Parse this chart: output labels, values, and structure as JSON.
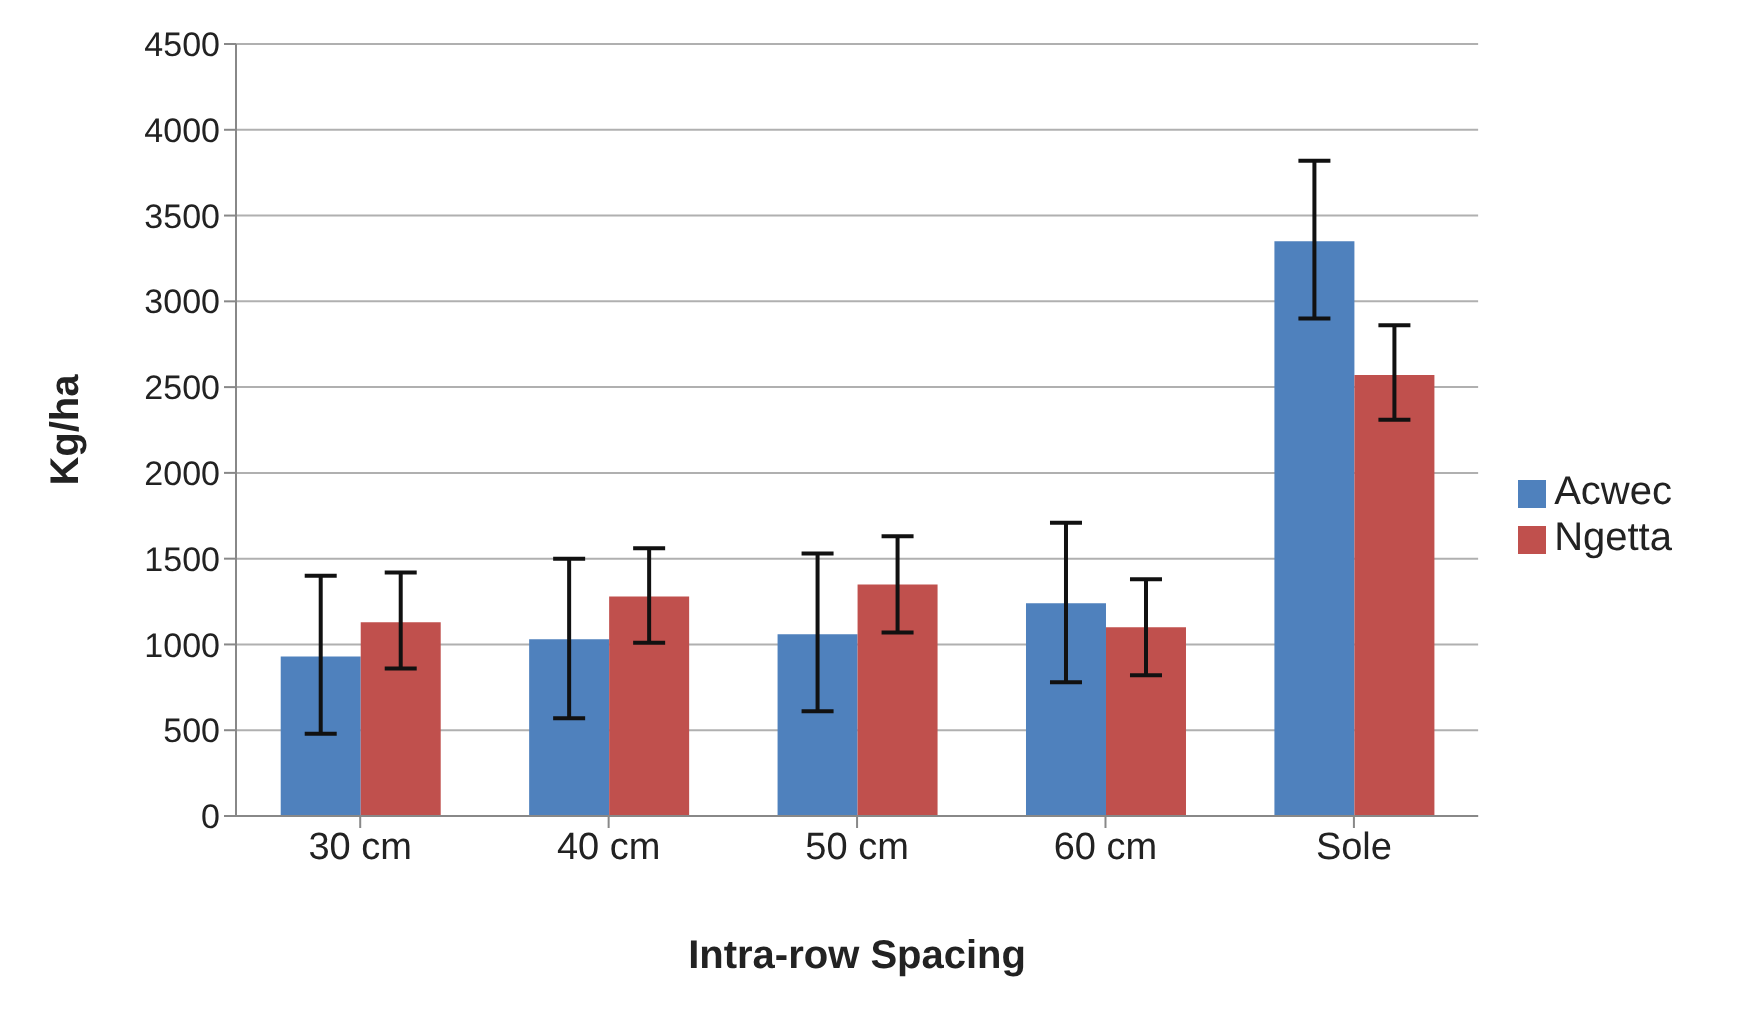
{
  "chart_data": {
    "type": "bar",
    "xlabel": "Intra-row Spacing",
    "ylabel": "Kg/ha",
    "categories": [
      "30 cm",
      "40 cm",
      "50 cm",
      "60 cm",
      "Sole"
    ],
    "series": [
      {
        "name": "Acwec",
        "color": "#4f81bd",
        "values": [
          930,
          1030,
          1060,
          1240,
          3350
        ],
        "errors": [
          [
            480,
            1400
          ],
          [
            570,
            1500
          ],
          [
            610,
            1530
          ],
          [
            780,
            1710
          ],
          [
            2900,
            3820
          ]
        ]
      },
      {
        "name": "Ngetta",
        "color": "#c0504d",
        "values": [
          1130,
          1280,
          1350,
          1100,
          2570
        ],
        "errors": [
          [
            860,
            1420
          ],
          [
            1010,
            1560
          ],
          [
            1070,
            1630
          ],
          [
            820,
            1380
          ],
          [
            2310,
            2860
          ]
        ]
      }
    ],
    "ylim": [
      0,
      4500
    ],
    "yticks": [
      0,
      500,
      1000,
      1500,
      2000,
      2500,
      3000,
      3500,
      4000,
      4500
    ],
    "grid": "y",
    "legend": "right"
  }
}
